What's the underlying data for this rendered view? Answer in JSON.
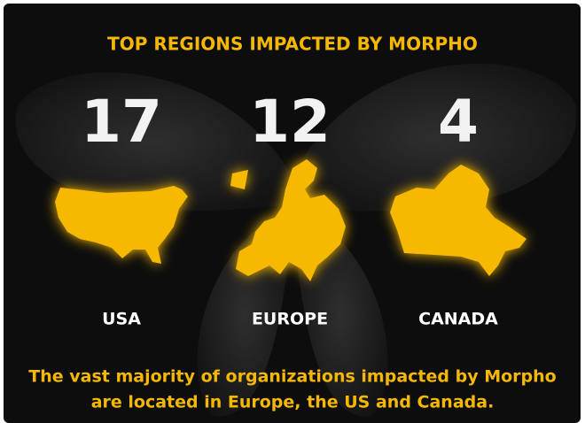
{
  "title": "TOP REGIONS IMPACTED BY MORPHO",
  "regions": [
    {
      "count": 17,
      "name": "USA"
    },
    {
      "count": 12,
      "name": "EUROPE"
    },
    {
      "count": 4,
      "name": "CANADA"
    }
  ],
  "footnote": [
    "The vast majority of organizations impacted by Morpho",
    "are located in Europe, the US and Canada."
  ]
}
